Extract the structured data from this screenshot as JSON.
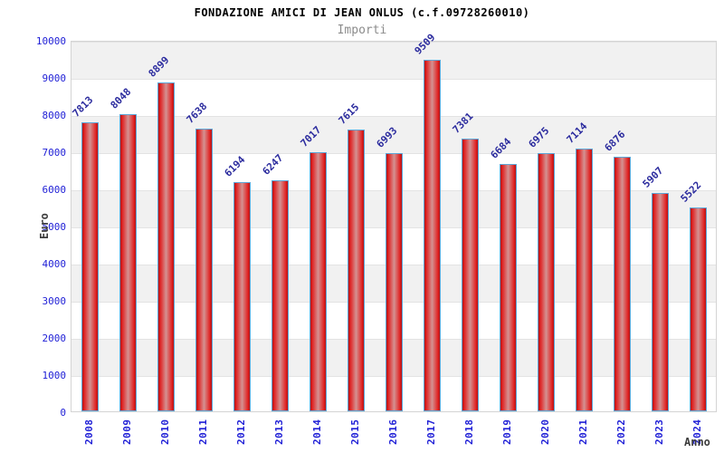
{
  "chart_data": {
    "type": "bar",
    "title": "FONDAZIONE AMICI DI JEAN ONLUS (c.f.09728260010)",
    "subtitle": "Importi",
    "xlabel": "Anno",
    "ylabel": "Euro",
    "categories": [
      "2008",
      "2009",
      "2010",
      "2011",
      "2012",
      "2013",
      "2014",
      "2015",
      "2016",
      "2017",
      "2018",
      "2019",
      "2020",
      "2021",
      "2022",
      "2023",
      "2024"
    ],
    "values": [
      7813,
      8048,
      8899,
      7638,
      6194,
      6247,
      7017,
      7615,
      6993,
      9509,
      7381,
      6684,
      6975,
      7114,
      6876,
      5907,
      5522
    ],
    "ylim": [
      0,
      10000
    ],
    "ytick_step": 1000,
    "ytick_labels": [
      "0",
      "1000",
      "2000",
      "3000",
      "4000",
      "5000",
      "6000",
      "7000",
      "8000",
      "9000",
      "10000"
    ],
    "legend_position": "none",
    "grid": "horizontal bands, alternating gray/white every 1000",
    "bar_value_labels_rotation_deg": -45,
    "x_tick_rotation_deg": 90,
    "colors": {
      "band_gray": "#f1f1f1",
      "plot_border": "#d4d4d4",
      "grid_line": "#e3e3e3",
      "tick_label": "#1f1fd6",
      "value_label": "#2b2b9e",
      "bar_border": "#5da7d8",
      "bar_edge": "#b21313",
      "bar_bright": "#e02222",
      "bar_center": "#d49292",
      "title": "#000000",
      "subtitle": "#8c8c8c",
      "axis_title": "#3c3c3c"
    }
  }
}
